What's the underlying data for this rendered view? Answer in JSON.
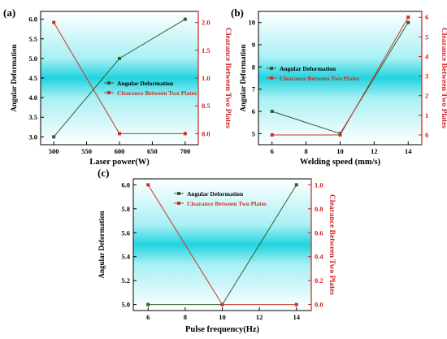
{
  "chart_data": [
    {
      "panel_label": "(a)",
      "type": "line",
      "x": [
        500,
        600,
        700
      ],
      "xlabel": "Laser power(W)",
      "xticks": [
        "500",
        "550",
        "600",
        "650",
        "700"
      ],
      "xlim": [
        480,
        720
      ],
      "ylabel_left": "Angular Deformation",
      "ylabel_right": "Clearance Between Two Plates",
      "ylim_left": [
        2.8,
        6.2
      ],
      "yticks_left": [
        "3.0",
        "3.5",
        "4.0",
        "4.5",
        "5.0",
        "5.5",
        "6.0"
      ],
      "ylim_right": [
        -0.2,
        2.2
      ],
      "yticks_right": [
        "0.0",
        "0.5",
        "1.0",
        "1.5",
        "2.0"
      ],
      "series": [
        {
          "name": "Angular Deformation",
          "axis": "left",
          "color": "#2f5f2f",
          "values": [
            3.0,
            5.0,
            6.0
          ]
        },
        {
          "name": "Clearance Between Two Plates",
          "axis": "right",
          "color": "#cc3322",
          "values": [
            2.0,
            0.0,
            0.0
          ]
        }
      ],
      "legend": "center"
    },
    {
      "panel_label": "(b)",
      "type": "line",
      "x": [
        6,
        10,
        14
      ],
      "xlabel": "Welding speed (mm/s)",
      "xticks": [
        "6",
        "8",
        "10",
        "12",
        "14"
      ],
      "xlim": [
        5.2,
        14.8
      ],
      "ylabel_left": "Angular Deformation",
      "ylabel_right": "Clearance Between Two Plates",
      "ylim_left": [
        4.5,
        10.5
      ],
      "yticks_left": [
        "5",
        "6",
        "7",
        "8",
        "9",
        "10"
      ],
      "ylim_right": [
        -0.5,
        6.3
      ],
      "yticks_right": [
        "0",
        "1",
        "2",
        "3",
        "4",
        "5",
        "6"
      ],
      "series": [
        {
          "name": "Angular Deformation",
          "axis": "left",
          "color": "#2f5f2f",
          "values": [
            6.0,
            5.0,
            10.0
          ]
        },
        {
          "name": "Clearance Between Two Plates",
          "axis": "right",
          "color": "#cc3322",
          "values": [
            0.0,
            0.0,
            6.0
          ]
        }
      ],
      "legend": "upper-left"
    },
    {
      "panel_label": "(c)",
      "type": "line",
      "x": [
        6,
        10,
        14
      ],
      "xlabel": "Pulse frequency(Hz)",
      "xticks": [
        "6",
        "8",
        "10",
        "12",
        "14"
      ],
      "xlim": [
        5.2,
        14.8
      ],
      "ylabel_left": "Angular Deformation",
      "ylabel_right": "Clearance Between Two Plates",
      "ylim_left": [
        4.95,
        6.05
      ],
      "yticks_left": [
        "5.0",
        "5.2",
        "5.4",
        "5.6",
        "5.8",
        "6.0"
      ],
      "ylim_right": [
        -0.05,
        1.05
      ],
      "yticks_right": [
        "0.0",
        "0.2",
        "0.4",
        "0.6",
        "0.8",
        "1.0"
      ],
      "series": [
        {
          "name": "Angular Deformation",
          "axis": "left",
          "color": "#2f5f2f",
          "values": [
            5.0,
            5.0,
            6.0
          ]
        },
        {
          "name": "Clearance Between Two Plates",
          "axis": "right",
          "color": "#cc3322",
          "values": [
            1.0,
            0.0,
            0.0
          ]
        }
      ],
      "legend": "top"
    }
  ]
}
